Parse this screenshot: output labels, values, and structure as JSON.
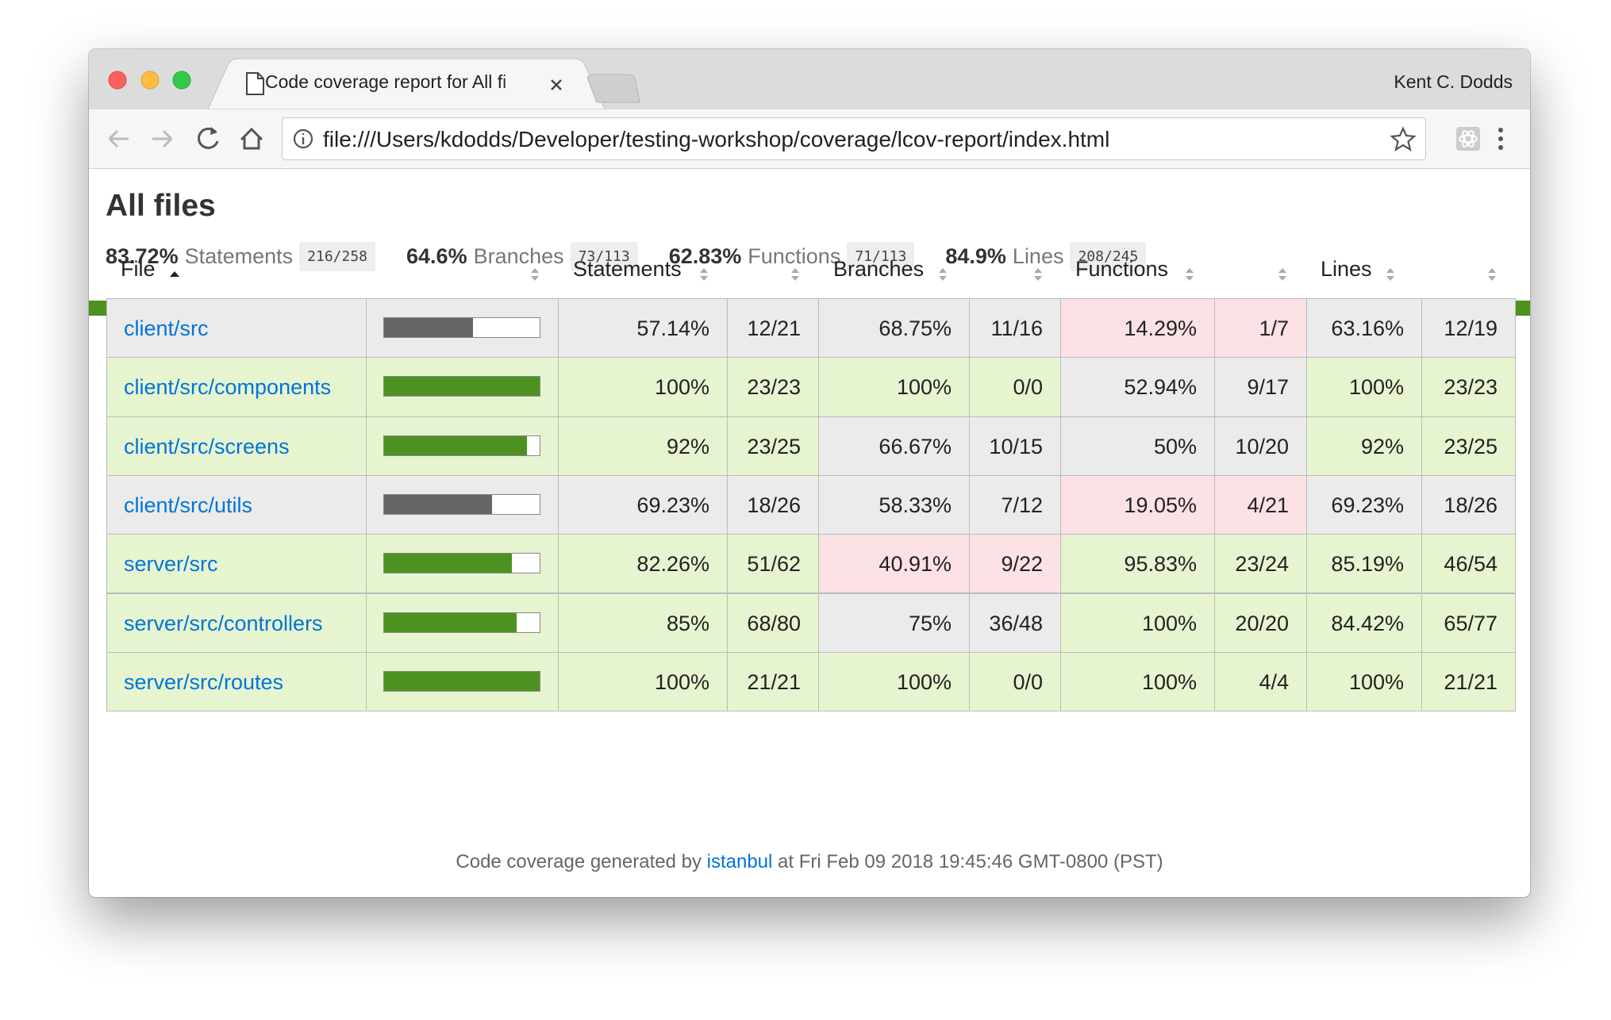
{
  "browser": {
    "tab_title": "Code coverage report for All fi",
    "profile": "Kent C. Dodds",
    "url": "file:///Users/kdodds/Developer/testing-workshop/coverage/lcov-report/index.html"
  },
  "header": {
    "title": "All files",
    "summary": [
      {
        "pct": "83.72%",
        "name": "Statements",
        "fraction": "216/258"
      },
      {
        "pct": "64.6%",
        "name": "Branches",
        "fraction": "73/113"
      },
      {
        "pct": "62.83%",
        "name": "Functions",
        "fraction": "71/113"
      },
      {
        "pct": "84.9%",
        "name": "Lines",
        "fraction": "208/245"
      }
    ]
  },
  "table": {
    "columns": [
      "File",
      "Statements",
      "Branches",
      "Functions",
      "Lines"
    ],
    "level_colors": {
      "high": "#e6f5d0",
      "medium": "#ebebeb",
      "low": "#fce1e5"
    },
    "bar_colors": {
      "high": "#4d9221",
      "medium": "#666666",
      "low": "#c21f39"
    },
    "bar_range": [
      0,
      100
    ],
    "rows": [
      {
        "file": "client/src",
        "statements": {
          "value": 57.14,
          "label": "57.14%",
          "fraction": "12/21",
          "level": "medium"
        },
        "branches": {
          "value": 68.75,
          "label": "68.75%",
          "fraction": "11/16",
          "level": "medium"
        },
        "functions": {
          "value": 14.29,
          "label": "14.29%",
          "fraction": "1/7",
          "level": "low"
        },
        "lines": {
          "value": 63.16,
          "label": "63.16%",
          "fraction": "12/19",
          "level": "medium"
        }
      },
      {
        "file": "client/src/components",
        "statements": {
          "value": 100,
          "label": "100%",
          "fraction": "23/23",
          "level": "high"
        },
        "branches": {
          "value": 100,
          "label": "100%",
          "fraction": "0/0",
          "level": "high"
        },
        "functions": {
          "value": 52.94,
          "label": "52.94%",
          "fraction": "9/17",
          "level": "medium"
        },
        "lines": {
          "value": 100,
          "label": "100%",
          "fraction": "23/23",
          "level": "high"
        }
      },
      {
        "file": "client/src/screens",
        "statements": {
          "value": 92,
          "label": "92%",
          "fraction": "23/25",
          "level": "high"
        },
        "branches": {
          "value": 66.67,
          "label": "66.67%",
          "fraction": "10/15",
          "level": "medium"
        },
        "functions": {
          "value": 50,
          "label": "50%",
          "fraction": "10/20",
          "level": "medium"
        },
        "lines": {
          "value": 92,
          "label": "92%",
          "fraction": "23/25",
          "level": "high"
        }
      },
      {
        "file": "client/src/utils",
        "statements": {
          "value": 69.23,
          "label": "69.23%",
          "fraction": "18/26",
          "level": "medium"
        },
        "branches": {
          "value": 58.33,
          "label": "58.33%",
          "fraction": "7/12",
          "level": "medium"
        },
        "functions": {
          "value": 19.05,
          "label": "19.05%",
          "fraction": "4/21",
          "level": "low"
        },
        "lines": {
          "value": 69.23,
          "label": "69.23%",
          "fraction": "18/26",
          "level": "medium"
        }
      },
      {
        "file": "server/src",
        "statements": {
          "value": 82.26,
          "label": "82.26%",
          "fraction": "51/62",
          "level": "high"
        },
        "branches": {
          "value": 40.91,
          "label": "40.91%",
          "fraction": "9/22",
          "level": "low"
        },
        "functions": {
          "value": 95.83,
          "label": "95.83%",
          "fraction": "23/24",
          "level": "high"
        },
        "lines": {
          "value": 85.19,
          "label": "85.19%",
          "fraction": "46/54",
          "level": "high"
        }
      },
      {
        "file": "server/src/controllers",
        "statements": {
          "value": 85,
          "label": "85%",
          "fraction": "68/80",
          "level": "high"
        },
        "branches": {
          "value": 75,
          "label": "75%",
          "fraction": "36/48",
          "level": "medium"
        },
        "functions": {
          "value": 100,
          "label": "100%",
          "fraction": "20/20",
          "level": "high"
        },
        "lines": {
          "value": 84.42,
          "label": "84.42%",
          "fraction": "65/77",
          "level": "high"
        }
      },
      {
        "file": "server/src/routes",
        "statements": {
          "value": 100,
          "label": "100%",
          "fraction": "21/21",
          "level": "high"
        },
        "branches": {
          "value": 100,
          "label": "100%",
          "fraction": "0/0",
          "level": "high"
        },
        "functions": {
          "value": 100,
          "label": "100%",
          "fraction": "4/4",
          "level": "high"
        },
        "lines": {
          "value": 100,
          "label": "100%",
          "fraction": "21/21",
          "level": "high"
        }
      }
    ]
  },
  "footer": {
    "before": "Code coverage generated by",
    "link": "istanbul",
    "after": "at Fri Feb 09 2018 19:45:46 GMT-0800 (PST)"
  }
}
